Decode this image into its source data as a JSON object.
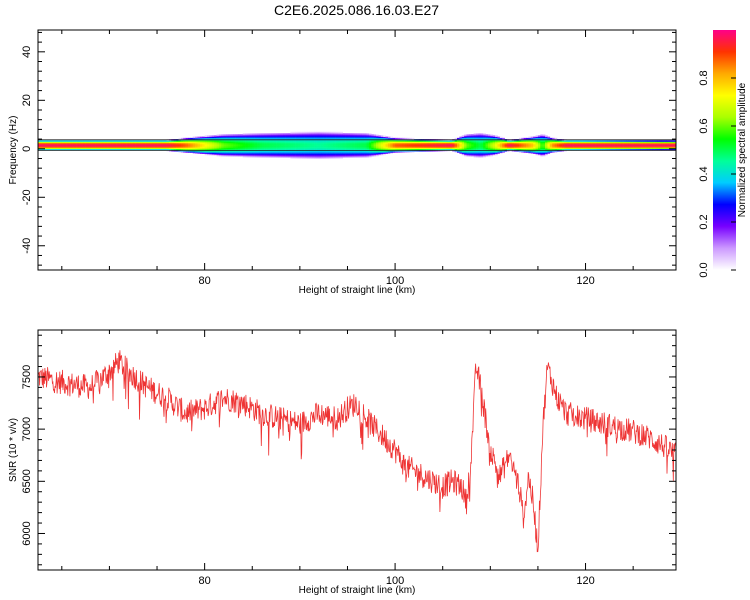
{
  "title": "C2E6.2025.086.16.03.E27",
  "chart_data": [
    {
      "type": "heatmap",
      "title": "",
      "xlabel": "Height of straight line (km)",
      "ylabel": "Frequency (Hz)",
      "xlim": [
        62.5,
        129.5
      ],
      "ylim": [
        -50,
        49
      ],
      "xticks": [
        80,
        100,
        120
      ],
      "yticks": [
        40,
        20,
        0,
        -20,
        -40
      ],
      "colorbar": {
        "label": "Normalized spectral amplitude",
        "range": [
          0,
          1
        ],
        "ticks": [
          "0.0",
          "0.2",
          "0.4",
          "0.6",
          "0.8"
        ],
        "colors": [
          "#ffffff",
          "#cc99ff",
          "#7700ff",
          "#0000ff",
          "#00ccff",
          "#00ff99",
          "#00ff00",
          "#aaff00",
          "#ffff00",
          "#ffaa00",
          "#ff3300",
          "#ff0088"
        ]
      },
      "band_centre_hz": 1.5,
      "extent_profile": [
        {
          "x": 62.5,
          "half_width_hz": 2.2,
          "peak": 1.0
        },
        {
          "x": 76,
          "half_width_hz": 2.2,
          "peak": 1.0
        },
        {
          "x": 78,
          "half_width_hz": 3.0,
          "peak": 0.9
        },
        {
          "x": 82,
          "half_width_hz": 4.5,
          "peak": 0.6
        },
        {
          "x": 86,
          "half_width_hz": 5.0,
          "peak": 0.5
        },
        {
          "x": 92,
          "half_width_hz": 5.5,
          "peak": 0.45
        },
        {
          "x": 97,
          "half_width_hz": 5.0,
          "peak": 0.5
        },
        {
          "x": 100,
          "half_width_hz": 3.0,
          "peak": 0.9
        },
        {
          "x": 106,
          "half_width_hz": 2.2,
          "peak": 1.0
        },
        {
          "x": 107.5,
          "half_width_hz": 4.5,
          "peak": 0.6
        },
        {
          "x": 109,
          "half_width_hz": 5.0,
          "peak": 0.5
        },
        {
          "x": 110.5,
          "half_width_hz": 4.0,
          "peak": 0.7
        },
        {
          "x": 112,
          "half_width_hz": 2.2,
          "peak": 1.0
        },
        {
          "x": 114.5,
          "half_width_hz": 3.5,
          "peak": 0.8
        },
        {
          "x": 115.5,
          "half_width_hz": 4.5,
          "peak": 0.55
        },
        {
          "x": 116.5,
          "half_width_hz": 3.0,
          "peak": 0.85
        },
        {
          "x": 118,
          "half_width_hz": 2.2,
          "peak": 1.0
        },
        {
          "x": 129.5,
          "half_width_hz": 2.0,
          "peak": 1.0
        }
      ]
    },
    {
      "type": "line",
      "title": "",
      "xlabel": "Height of straight line (km)",
      "ylabel": "SNR (10 * v/v)",
      "xlim": [
        62.5,
        129.5
      ],
      "ylim": [
        5650,
        7950
      ],
      "xticks": [
        80,
        100,
        120
      ],
      "yticks": [
        6000,
        6500,
        7000,
        7500
      ],
      "series": [
        {
          "color": "#ee3333",
          "noise_amplitude": 120,
          "x": [
            62.5,
            65,
            68,
            70,
            71,
            72,
            74,
            76,
            78,
            80,
            82,
            84,
            86,
            88,
            90,
            92,
            94,
            95,
            96,
            97,
            98,
            99,
            100,
            101,
            102,
            103,
            104,
            105,
            106,
            107,
            107.5,
            108,
            108.5,
            109,
            110,
            111,
            112,
            113,
            113.5,
            114,
            114.5,
            115,
            115.5,
            116,
            117,
            118,
            120,
            122,
            124,
            126,
            128,
            129.5
          ],
          "y": [
            7500,
            7450,
            7400,
            7550,
            7650,
            7550,
            7400,
            7300,
            7150,
            7200,
            7300,
            7250,
            7150,
            7100,
            7050,
            7150,
            7100,
            7200,
            7250,
            7100,
            7000,
            6900,
            6800,
            6650,
            6600,
            6550,
            6500,
            6450,
            6500,
            6450,
            6300,
            6750,
            7600,
            7400,
            6800,
            6550,
            6750,
            6450,
            6150,
            6550,
            6300,
            5850,
            7000,
            7600,
            7300,
            7150,
            7100,
            7050,
            7000,
            6950,
            6850,
            6750
          ]
        }
      ]
    }
  ]
}
